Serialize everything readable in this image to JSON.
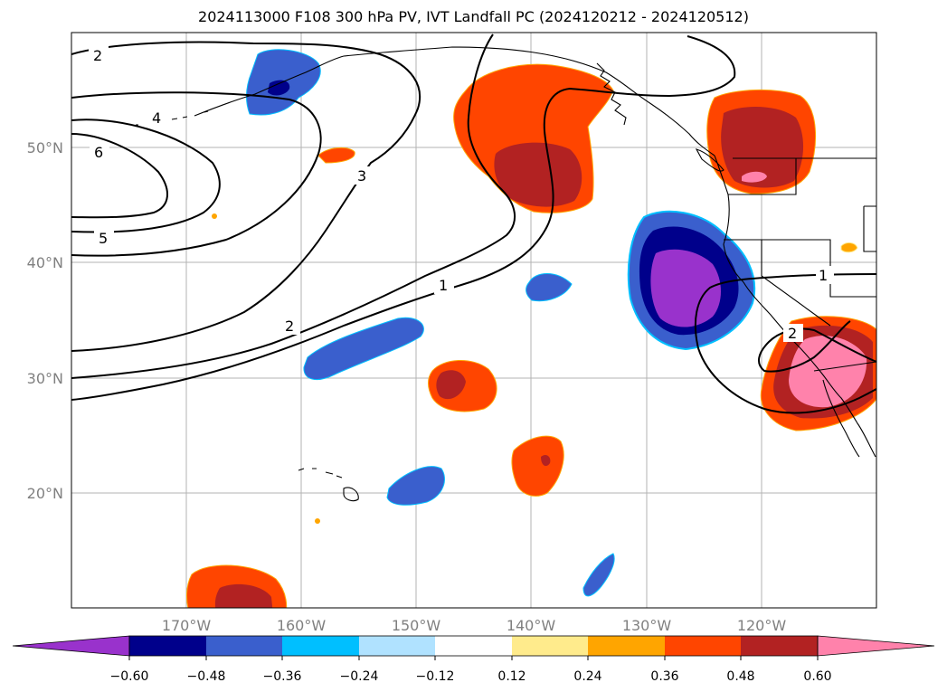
{
  "figure": {
    "title": "2024113000 F108 300 hPa PV, IVT Landfall PC (2024120212 - 2024120512)"
  },
  "map": {
    "projection": "lat-lon",
    "extent": {
      "lon_min": -180,
      "lon_max": -110,
      "lat_min": 10,
      "lat_max": 60
    },
    "gridlines": true,
    "lat_ticks": [
      {
        "value": 20,
        "label": "20°N"
      },
      {
        "value": 30,
        "label": "30°N"
      },
      {
        "value": 40,
        "label": "40°N"
      },
      {
        "value": 50,
        "label": "50°N"
      }
    ],
    "lon_ticks": [
      {
        "value": -170,
        "label": "170°W"
      },
      {
        "value": -160,
        "label": "160°W"
      },
      {
        "value": -150,
        "label": "150°W"
      },
      {
        "value": -140,
        "label": "140°W"
      },
      {
        "value": -130,
        "label": "130°W"
      },
      {
        "value": -120,
        "label": "120°W"
      }
    ],
    "tick_label_color": "#808080"
  },
  "pv_contours": {
    "units": "PVU",
    "labels": [
      "1",
      "2",
      "3",
      "4",
      "5",
      "6",
      "2",
      "1",
      "2"
    ]
  },
  "colorbar": {
    "extend": "both",
    "tick_labels": [
      "−0.60",
      "−0.48",
      "−0.36",
      "−0.24",
      "−0.12",
      "0.12",
      "0.24",
      "0.36",
      "0.48",
      "0.60"
    ],
    "colors": [
      "#9932cc",
      "#00008b",
      "#3a5fcd",
      "#00bfff",
      "#b0e2ff",
      "#ffffff",
      "#ffeb8c",
      "#ffa500",
      "#ff4500",
      "#b22222",
      "#ff82ab"
    ]
  }
}
